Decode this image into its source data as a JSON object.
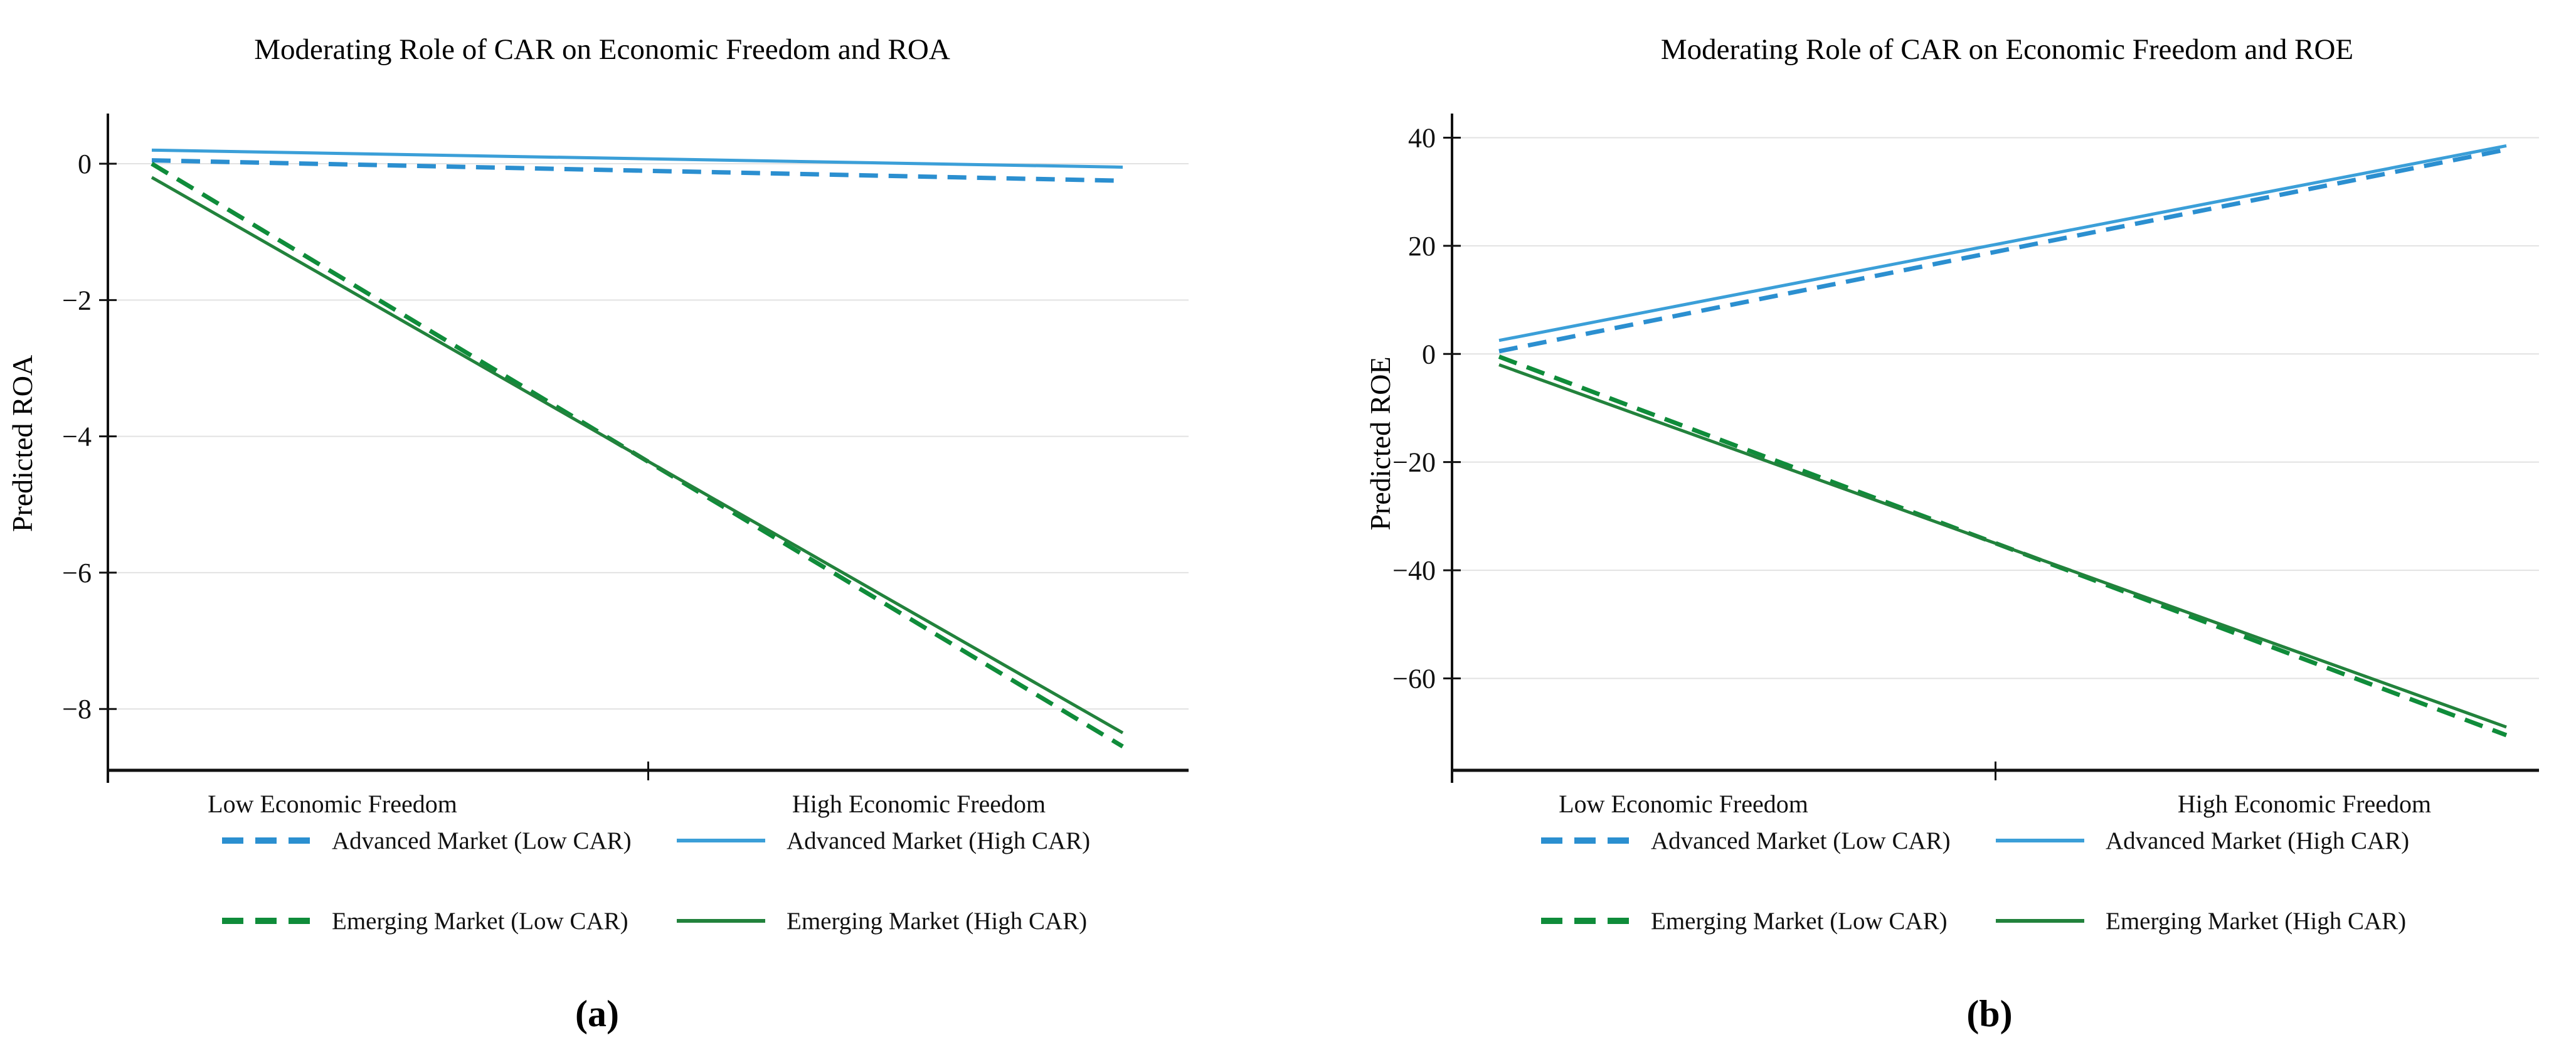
{
  "figure": {
    "background": "#ffffff",
    "axis_color": "#111111",
    "grid_color": "#e2e2e2"
  },
  "chart_data": [
    {
      "type": "line",
      "title": "Moderating Role of CAR on Economic Freedom and ROA",
      "caption": "(a)",
      "xlabel": "",
      "ylabel": "Predicted ROA",
      "categories": [
        "Low Economic Freedom",
        "High Economic Freedom"
      ],
      "ylim": [
        -8.9,
        0.7
      ],
      "yticks": [
        0,
        -2,
        -4,
        -6,
        -8
      ],
      "grid": true,
      "legend_position": "bottom",
      "series": [
        {
          "name": "Advanced Market (Low CAR)",
          "values": [
            0.05,
            -0.25
          ],
          "color": "#2b8fd0",
          "dash": true
        },
        {
          "name": "Advanced Market (High CAR)",
          "values": [
            0.2,
            -0.05
          ],
          "color": "#3b9fd8",
          "dash": false
        },
        {
          "name": "Emerging Market (Low CAR)",
          "values": [
            0.0,
            -8.55
          ],
          "color": "#0f8c3a",
          "dash": true
        },
        {
          "name": "Emerging Market (High CAR)",
          "values": [
            -0.2,
            -8.35
          ],
          "color": "#22823c",
          "dash": false
        }
      ]
    },
    {
      "type": "line",
      "title": "Moderating Role of CAR on Economic Freedom and ROE",
      "caption": "(b)",
      "xlabel": "",
      "ylabel": "Predicted ROE",
      "categories": [
        "Low Economic Freedom",
        "High Economic Freedom"
      ],
      "ylim": [
        -77,
        44
      ],
      "yticks": [
        40,
        20,
        0,
        -20,
        -40,
        -60
      ],
      "grid": true,
      "legend_position": "bottom",
      "series": [
        {
          "name": "Advanced Market (Low CAR)",
          "values": [
            0.5,
            37.8
          ],
          "color": "#2b8fd0",
          "dash": true
        },
        {
          "name": "Advanced Market (High CAR)",
          "values": [
            2.5,
            38.5
          ],
          "color": "#3b9fd8",
          "dash": false
        },
        {
          "name": "Emerging Market (Low CAR)",
          "values": [
            -0.5,
            -70.5
          ],
          "color": "#0f8c3a",
          "dash": true
        },
        {
          "name": "Emerging Market (High CAR)",
          "values": [
            -2.0,
            -69.0
          ],
          "color": "#22823c",
          "dash": false
        }
      ]
    }
  ]
}
